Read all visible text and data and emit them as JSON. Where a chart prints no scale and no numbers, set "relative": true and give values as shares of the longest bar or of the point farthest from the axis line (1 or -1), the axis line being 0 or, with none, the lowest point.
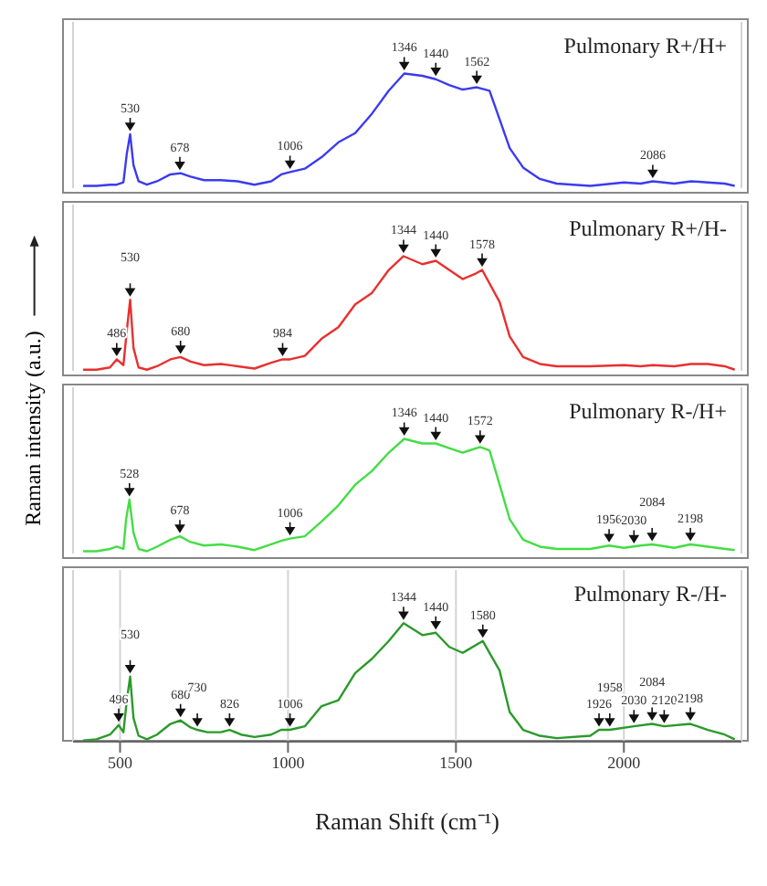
{
  "chart_data": [
    {
      "type": "line",
      "title": "Pulmonary R+/H+",
      "relative": true,
      "grid": "x",
      "tick_labels": false,
      "color": "#3b3bf0",
      "xlim": [
        360,
        2350
      ],
      "xticks": [
        500,
        1000,
        1500,
        2000
      ],
      "x": [
        390,
        430,
        470,
        490,
        510,
        520,
        530,
        540,
        555,
        580,
        610,
        650,
        680,
        710,
        750,
        800,
        850,
        900,
        950,
        980,
        1006,
        1050,
        1100,
        1150,
        1200,
        1250,
        1300,
        1346,
        1400,
        1440,
        1480,
        1520,
        1562,
        1600,
        1630,
        1660,
        1700,
        1750,
        1800,
        1900,
        2000,
        2050,
        2086,
        2150,
        2200,
        2250,
        2300,
        2330
      ],
      "values": [
        0.02,
        0.02,
        0.03,
        0.03,
        0.05,
        0.3,
        0.47,
        0.2,
        0.06,
        0.03,
        0.06,
        0.12,
        0.13,
        0.1,
        0.07,
        0.07,
        0.06,
        0.03,
        0.06,
        0.12,
        0.14,
        0.17,
        0.27,
        0.4,
        0.48,
        0.65,
        0.85,
        1.0,
        0.98,
        0.95,
        0.9,
        0.86,
        0.88,
        0.85,
        0.6,
        0.35,
        0.18,
        0.08,
        0.04,
        0.02,
        0.05,
        0.04,
        0.06,
        0.04,
        0.06,
        0.05,
        0.04,
        0.02
      ],
      "annotations": [
        {
          "text": "530",
          "x": 530,
          "y": 0.47
        },
        {
          "text": "678",
          "x": 678,
          "y": 0.13
        },
        {
          "text": "1006",
          "x": 1006,
          "y": 0.14
        },
        {
          "text": "1346",
          "x": 1346,
          "y": 1.0
        },
        {
          "text": "1440",
          "x": 1440,
          "y": 0.95
        },
        {
          "text": "1562",
          "x": 1562,
          "y": 0.88
        },
        {
          "text": "2086",
          "x": 2086,
          "y": 0.06
        }
      ]
    },
    {
      "type": "line",
      "title": "Pulmonary R+/H-",
      "relative": true,
      "grid": "x",
      "tick_labels": false,
      "color": "#e83030",
      "xlim": [
        360,
        2350
      ],
      "xticks": [
        500,
        1000,
        1500,
        2000
      ],
      "x": [
        390,
        430,
        470,
        490,
        510,
        520,
        530,
        540,
        555,
        580,
        610,
        650,
        680,
        710,
        750,
        800,
        850,
        900,
        950,
        984,
        1006,
        1050,
        1100,
        1150,
        1200,
        1250,
        1300,
        1344,
        1400,
        1440,
        1480,
        1520,
        1560,
        1578,
        1630,
        1660,
        1700,
        1750,
        1800,
        1900,
        2000,
        2050,
        2086,
        2150,
        2200,
        2250,
        2300,
        2330
      ],
      "values": [
        0.01,
        0.01,
        0.03,
        0.1,
        0.05,
        0.35,
        0.62,
        0.2,
        0.03,
        0.01,
        0.04,
        0.1,
        0.12,
        0.08,
        0.05,
        0.06,
        0.04,
        0.02,
        0.07,
        0.1,
        0.1,
        0.13,
        0.28,
        0.38,
        0.58,
        0.68,
        0.88,
        1.0,
        0.93,
        0.96,
        0.88,
        0.8,
        0.85,
        0.88,
        0.6,
        0.3,
        0.12,
        0.06,
        0.04,
        0.04,
        0.05,
        0.04,
        0.05,
        0.04,
        0.06,
        0.06,
        0.04,
        0.01
      ],
      "annotations": [
        {
          "text": "486",
          "x": 490,
          "y": 0.1
        },
        {
          "text": "530",
          "x": 530,
          "y": 0.62
        },
        {
          "text": "680",
          "x": 680,
          "y": 0.12
        },
        {
          "text": "984",
          "x": 984,
          "y": 0.1
        },
        {
          "text": "1344",
          "x": 1344,
          "y": 1.0
        },
        {
          "text": "1440",
          "x": 1440,
          "y": 0.96
        },
        {
          "text": "1578",
          "x": 1578,
          "y": 0.88
        }
      ]
    },
    {
      "type": "line",
      "title": "Pulmonary R-/H+",
      "ylabel": "Raman intensity (a.u.)",
      "relative": true,
      "grid": "x",
      "tick_labels": false,
      "color": "#44dd44",
      "xlim": [
        360,
        2350
      ],
      "xticks": [
        500,
        1000,
        1500,
        2000
      ],
      "x": [
        390,
        430,
        470,
        490,
        510,
        518,
        528,
        540,
        555,
        580,
        610,
        650,
        678,
        710,
        750,
        800,
        850,
        900,
        950,
        980,
        1006,
        1050,
        1100,
        1150,
        1200,
        1250,
        1300,
        1346,
        1400,
        1440,
        1480,
        1520,
        1572,
        1600,
        1630,
        1660,
        1700,
        1750,
        1800,
        1900,
        1956,
        2000,
        2050,
        2084,
        2150,
        2198,
        2250,
        2330
      ],
      "values": [
        0.02,
        0.02,
        0.04,
        0.06,
        0.04,
        0.3,
        0.47,
        0.18,
        0.04,
        0.02,
        0.06,
        0.12,
        0.15,
        0.1,
        0.07,
        0.08,
        0.06,
        0.03,
        0.08,
        0.11,
        0.13,
        0.15,
        0.28,
        0.42,
        0.6,
        0.72,
        0.88,
        1.0,
        0.96,
        0.96,
        0.92,
        0.88,
        0.93,
        0.9,
        0.6,
        0.3,
        0.12,
        0.06,
        0.04,
        0.04,
        0.07,
        0.05,
        0.07,
        0.08,
        0.05,
        0.08,
        0.06,
        0.03
      ],
      "annotations": [
        {
          "text": "528",
          "x": 528,
          "y": 0.47
        },
        {
          "text": "678",
          "x": 678,
          "y": 0.15
        },
        {
          "text": "1006",
          "x": 1006,
          "y": 0.13
        },
        {
          "text": "1346",
          "x": 1346,
          "y": 1.0
        },
        {
          "text": "1440",
          "x": 1440,
          "y": 0.96
        },
        {
          "text": "1572",
          "x": 1572,
          "y": 0.93
        },
        {
          "text": "1956",
          "x": 1956,
          "y": 0.07
        },
        {
          "text": "2030",
          "x": 2030,
          "y": 0.06
        },
        {
          "text": "2084",
          "x": 2084,
          "y": 0.08
        },
        {
          "text": "2198",
          "x": 2198,
          "y": 0.08
        }
      ]
    },
    {
      "type": "line",
      "title": "Pulmonary R-/H-",
      "xlabel": "Raman Shift (cm⁻¹)",
      "relative": true,
      "grid": "x",
      "tick_labels": "x",
      "color": "#2a9a2a",
      "xlim": [
        360,
        2350
      ],
      "xticks": [
        500,
        1000,
        1500,
        2000
      ],
      "x": [
        390,
        430,
        470,
        496,
        510,
        520,
        530,
        540,
        555,
        580,
        610,
        650,
        680,
        710,
        730,
        760,
        800,
        826,
        860,
        900,
        950,
        980,
        1006,
        1050,
        1100,
        1150,
        1200,
        1250,
        1300,
        1344,
        1400,
        1440,
        1480,
        1520,
        1580,
        1630,
        1660,
        1700,
        1750,
        1800,
        1900,
        1926,
        1958,
        2030,
        2084,
        2120,
        2198,
        2250,
        2300,
        2330
      ],
      "values": [
        0.01,
        0.02,
        0.06,
        0.14,
        0.08,
        0.35,
        0.55,
        0.2,
        0.05,
        0.02,
        0.06,
        0.15,
        0.18,
        0.12,
        0.1,
        0.08,
        0.08,
        0.1,
        0.06,
        0.04,
        0.06,
        0.1,
        0.1,
        0.13,
        0.3,
        0.35,
        0.58,
        0.7,
        0.85,
        1.0,
        0.9,
        0.92,
        0.8,
        0.75,
        0.85,
        0.6,
        0.25,
        0.1,
        0.05,
        0.03,
        0.05,
        0.1,
        0.1,
        0.13,
        0.15,
        0.13,
        0.15,
        0.1,
        0.06,
        0.02
      ],
      "annotations": [
        {
          "text": "496",
          "x": 496,
          "y": 0.14
        },
        {
          "text": "530",
          "x": 530,
          "y": 0.55
        },
        {
          "text": "680",
          "x": 680,
          "y": 0.18
        },
        {
          "text": "730",
          "x": 730,
          "y": 0.1
        },
        {
          "text": "826",
          "x": 826,
          "y": 0.1
        },
        {
          "text": "1006",
          "x": 1006,
          "y": 0.1
        },
        {
          "text": "1344",
          "x": 1344,
          "y": 1.0
        },
        {
          "text": "1440",
          "x": 1440,
          "y": 0.92
        },
        {
          "text": "1580",
          "x": 1580,
          "y": 0.85
        },
        {
          "text": "1926",
          "x": 1926,
          "y": 0.1
        },
        {
          "text": "1958",
          "x": 1958,
          "y": 0.1
        },
        {
          "text": "2030",
          "x": 2030,
          "y": 0.13
        },
        {
          "text": "2084",
          "x": 2084,
          "y": 0.15
        },
        {
          "text": "2120",
          "x": 2120,
          "y": 0.13
        },
        {
          "text": "2198",
          "x": 2198,
          "y": 0.15
        }
      ]
    }
  ]
}
